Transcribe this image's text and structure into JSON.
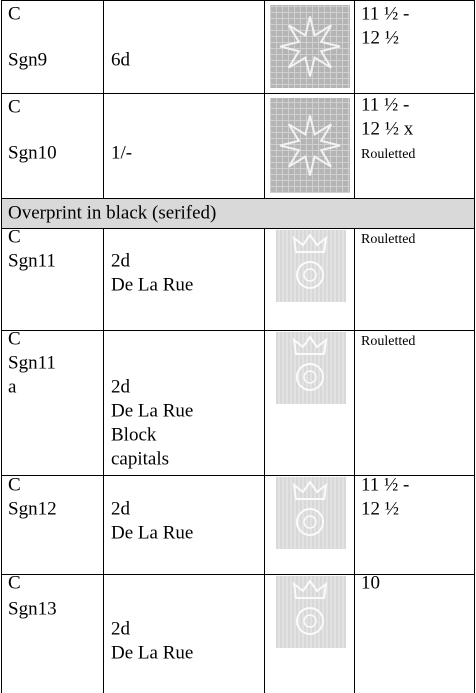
{
  "table": {
    "rows": [
      {
        "code": [
          "C",
          "Sgn9"
        ],
        "value": [
          "6d"
        ],
        "perforation": [
          "11 ½ -",
          "12 ½"
        ]
      },
      {
        "code": [
          "C",
          "Sgn10"
        ],
        "value": [
          "1/-"
        ],
        "perforation": [
          "11 ½ -",
          "12 ½ x"
        ],
        "perforation_note": "Rouletted"
      },
      {
        "section": "Overprint in black (serifed)"
      },
      {
        "code": [
          "C",
          "Sgn11"
        ],
        "value": [
          "2d",
          "De La Rue"
        ],
        "perforation_note": "Rouletted"
      },
      {
        "code": [
          "C",
          "Sgn11",
          "a"
        ],
        "value": [
          "2d",
          "De La Rue",
          "Block",
          "capitals"
        ],
        "perforation_note": "Rouletted"
      },
      {
        "code": [
          "C",
          "Sgn12"
        ],
        "value": [
          "2d",
          "De La Rue"
        ],
        "perforation": [
          "11 ½ -",
          "12 ½"
        ]
      },
      {
        "code": [
          "C",
          "Sgn13"
        ],
        "value": [
          "2d",
          "De La Rue"
        ],
        "perforation": [
          "10"
        ]
      }
    ]
  }
}
